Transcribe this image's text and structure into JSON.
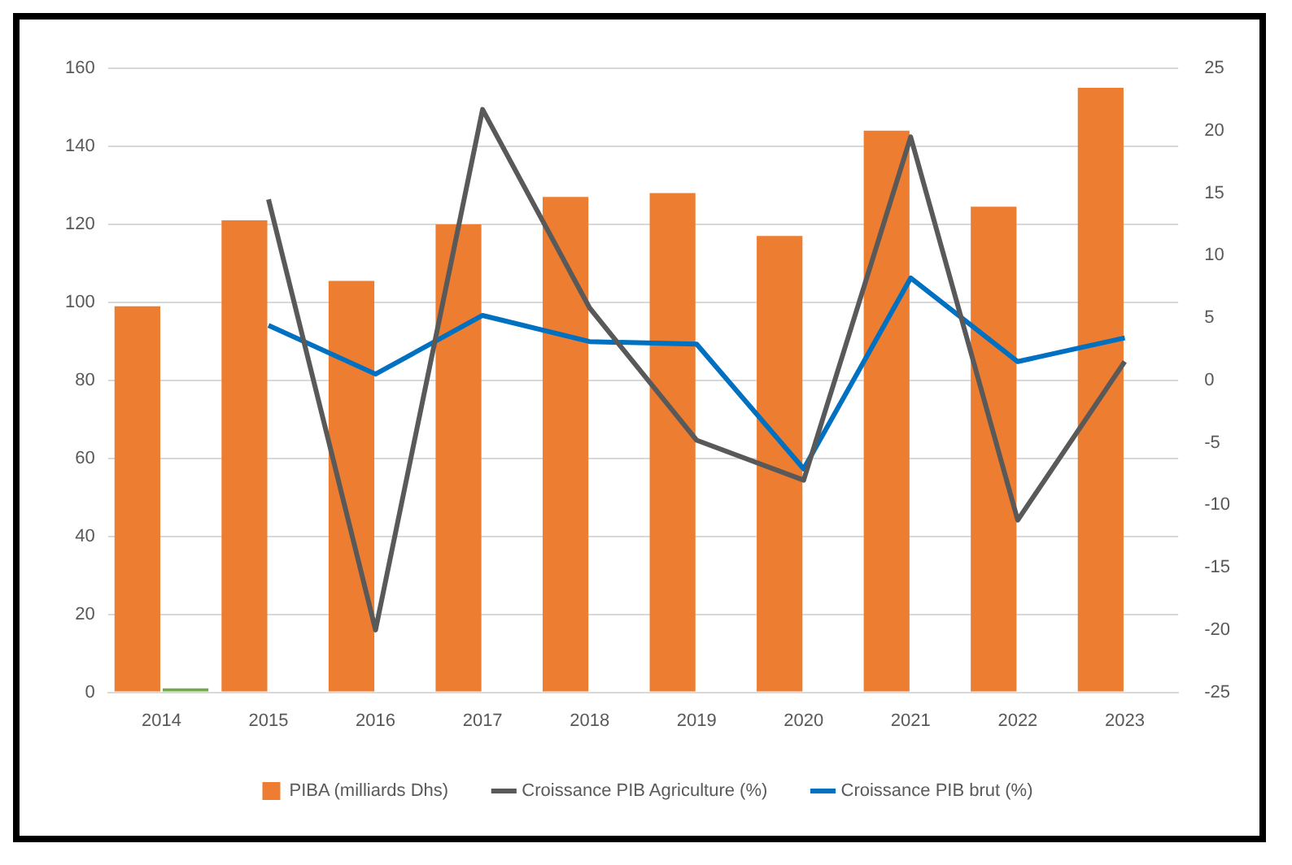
{
  "chart_data": {
    "type": "bar",
    "categories": [
      "2014",
      "2015",
      "2016",
      "2017",
      "2018",
      "2019",
      "2020",
      "2021",
      "2022",
      "2023"
    ],
    "series": [
      {
        "name": "PIBA (milliards Dhs)",
        "color": "#ed7d31",
        "values": [
          99,
          121,
          105.5,
          120,
          127,
          128,
          117,
          144,
          124.5,
          155
        ]
      },
      {
        "color": "#70ad47",
        "values": [
          1,
          null,
          null,
          null,
          null,
          null,
          null,
          null,
          null,
          null
        ]
      },
      {
        "name": "Croissance PIB Agriculture (%)",
        "type": "line",
        "axis": "y2",
        "color": "#595959",
        "values": [
          null,
          14.5,
          -20,
          21.7,
          5.8,
          -4.8,
          -8,
          19.5,
          -11.2,
          1.5
        ]
      },
      {
        "name": "Croissance PIB brut (%)",
        "type": "line",
        "axis": "y2",
        "color": "#0070c0",
        "values": [
          null,
          4.4,
          0.5,
          5.2,
          3.1,
          2.9,
          -7.1,
          8.2,
          1.5,
          3.4
        ]
      }
    ],
    "ylim": [
      0,
      160
    ],
    "yticks": [
      0,
      20,
      40,
      60,
      80,
      100,
      120,
      140,
      160
    ],
    "y2lim": [
      -25,
      25
    ],
    "y2ticks": [
      -25,
      -20,
      -15,
      -10,
      -5,
      0,
      5,
      10,
      15,
      20,
      25
    ],
    "grid": "y",
    "legend": "bottom",
    "marker": "none"
  }
}
